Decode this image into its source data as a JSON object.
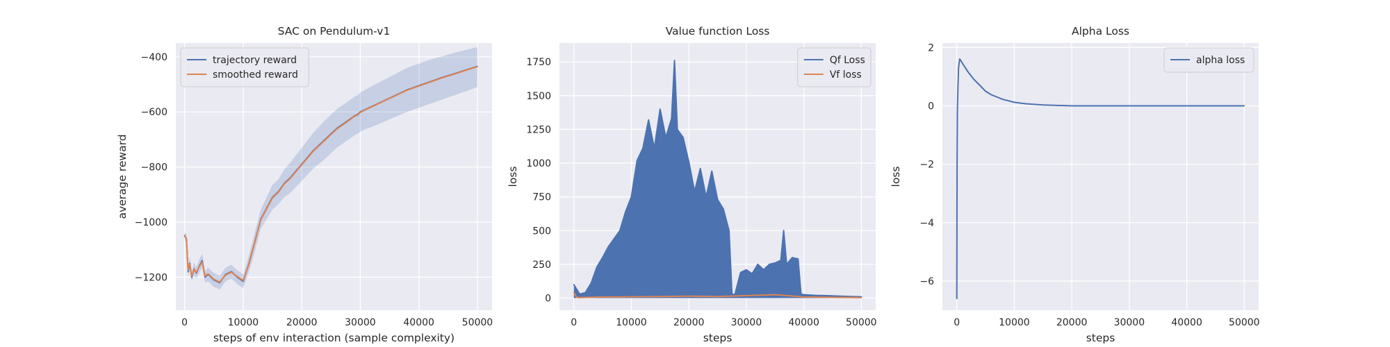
{
  "colors": {
    "blue": "#4c72b0",
    "orange": "#dd8452",
    "band": "#4c72b0"
  },
  "chart_data": [
    {
      "type": "line",
      "title": "SAC on Pendulum-v1",
      "xlabel": "steps of env interaction (sample complexity)",
      "ylabel": "average reward",
      "xlim": [
        -1500,
        52500
      ],
      "ylim": [
        -1320,
        -350
      ],
      "xticks": [
        0,
        10000,
        20000,
        30000,
        40000,
        50000
      ],
      "yticks": [
        -1200,
        -1000,
        -800,
        -600,
        -400
      ],
      "grid": true,
      "legend": "top-left",
      "series": [
        {
          "name": "trajectory reward",
          "x": [
            0,
            300,
            600,
            900,
            1200,
            1600,
            2000,
            2500,
            3000,
            3500,
            4000,
            5000,
            6000,
            7000,
            8000,
            9000,
            10000,
            11000,
            12000,
            13000,
            14000,
            15000,
            16000,
            17000,
            18000,
            20000,
            22000,
            24000,
            26000,
            28000,
            29000,
            29500,
            30000,
            31000,
            32000,
            34000,
            36000,
            38000,
            40000,
            42000,
            44000,
            46000,
            48000,
            50000
          ],
          "y": [
            -1050,
            -1060,
            -1180,
            -1150,
            -1200,
            -1170,
            -1185,
            -1160,
            -1140,
            -1200,
            -1190,
            -1210,
            -1220,
            -1190,
            -1180,
            -1200,
            -1215,
            -1150,
            -1070,
            -990,
            -950,
            -910,
            -890,
            -860,
            -840,
            -790,
            -740,
            -700,
            -660,
            -630,
            -615,
            -610,
            -600,
            -590,
            -580,
            -560,
            -540,
            -520,
            -505,
            -490,
            -475,
            -462,
            -448,
            -435
          ],
          "band_lo": [
            -1060,
            -1080,
            -1200,
            -1175,
            -1215,
            -1195,
            -1205,
            -1185,
            -1165,
            -1220,
            -1215,
            -1235,
            -1245,
            -1215,
            -1205,
            -1225,
            -1240,
            -1180,
            -1105,
            -1025,
            -990,
            -955,
            -935,
            -910,
            -895,
            -850,
            -805,
            -770,
            -730,
            -700,
            -685,
            -680,
            -672,
            -662,
            -654,
            -636,
            -618,
            -600,
            -585,
            -570,
            -555,
            -540,
            -525,
            -510
          ],
          "band_hi": [
            -1040,
            -1040,
            -1160,
            -1125,
            -1185,
            -1145,
            -1165,
            -1135,
            -1115,
            -1180,
            -1165,
            -1185,
            -1195,
            -1165,
            -1155,
            -1175,
            -1190,
            -1120,
            -1035,
            -955,
            -910,
            -865,
            -845,
            -810,
            -785,
            -730,
            -675,
            -630,
            -590,
            -560,
            -545,
            -540,
            -530,
            -518,
            -506,
            -484,
            -462,
            -440,
            -425,
            -410,
            -398,
            -386,
            -375,
            -365
          ]
        },
        {
          "name": "smoothed reward",
          "x": [
            0,
            300,
            600,
            900,
            1200,
            1600,
            2000,
            2500,
            3000,
            3500,
            4000,
            5000,
            6000,
            7000,
            8000,
            9000,
            10000,
            11000,
            12000,
            13000,
            14000,
            15000,
            16000,
            17000,
            18000,
            20000,
            22000,
            24000,
            26000,
            28000,
            29000,
            29500,
            30000,
            31000,
            32000,
            34000,
            36000,
            38000,
            40000,
            42000,
            44000,
            46000,
            48000,
            50000
          ],
          "y": [
            -1048,
            -1062,
            -1175,
            -1152,
            -1196,
            -1172,
            -1182,
            -1162,
            -1145,
            -1196,
            -1188,
            -1208,
            -1218,
            -1192,
            -1182,
            -1198,
            -1212,
            -1152,
            -1072,
            -992,
            -952,
            -912,
            -892,
            -862,
            -842,
            -792,
            -742,
            -702,
            -662,
            -632,
            -616,
            -612,
            -602,
            -591,
            -581,
            -561,
            -541,
            -521,
            -506,
            -491,
            -476,
            -463,
            -449,
            -436
          ]
        }
      ]
    },
    {
      "type": "line",
      "title": "Value function Loss",
      "xlabel": "steps",
      "ylabel": "loss",
      "xlim": [
        -2500,
        52500
      ],
      "ylim": [
        -90,
        1890
      ],
      "xticks": [
        0,
        10000,
        20000,
        30000,
        40000,
        50000
      ],
      "yticks": [
        0,
        250,
        500,
        750,
        1000,
        1250,
        1500,
        1750
      ],
      "grid": true,
      "legend": "top-right",
      "series": [
        {
          "name": "Qf Loss",
          "x": [
            0,
            1000,
            2000,
            3000,
            4000,
            5000,
            6000,
            7000,
            8000,
            9000,
            10000,
            11000,
            12000,
            13000,
            14000,
            15000,
            16000,
            17000,
            17500,
            18000,
            19000,
            20000,
            21000,
            22000,
            23000,
            24000,
            25000,
            26000,
            27000,
            27500,
            28000,
            29000,
            30000,
            31000,
            32000,
            33000,
            34000,
            35000,
            36000,
            36500,
            37000,
            38000,
            39000,
            39500,
            40000,
            42000,
            44000,
            46000,
            48000,
            50000
          ],
          "y": [
            100,
            30,
            40,
            110,
            230,
            300,
            380,
            440,
            500,
            640,
            750,
            1020,
            1110,
            1320,
            1110,
            1400,
            1190,
            1330,
            1760,
            1250,
            1190,
            1010,
            790,
            960,
            750,
            940,
            730,
            660,
            500,
            30,
            25,
            190,
            210,
            180,
            250,
            210,
            250,
            260,
            280,
            500,
            250,
            300,
            290,
            30,
            25,
            20,
            18,
            15,
            12,
            10
          ]
        },
        {
          "name": "Vf loss",
          "x": [
            0,
            500,
            1000,
            5000,
            10000,
            15000,
            20000,
            25000,
            30000,
            35000,
            40000,
            45000,
            50000
          ],
          "y": [
            40,
            5,
            3,
            8,
            10,
            12,
            14,
            12,
            18,
            25,
            8,
            5,
            3
          ]
        }
      ]
    },
    {
      "type": "line",
      "title": "Alpha Loss",
      "xlabel": "steps",
      "ylabel": "loss",
      "xlim": [
        -2500,
        52500
      ],
      "ylim": [
        -7.0,
        2.15
      ],
      "xticks": [
        0,
        10000,
        20000,
        30000,
        40000,
        50000
      ],
      "yticks": [
        -6,
        -4,
        -2,
        0,
        2
      ],
      "grid": true,
      "legend": "top-right",
      "series": [
        {
          "name": "alpha loss",
          "x": [
            0,
            50,
            100,
            200,
            300,
            500,
            700,
            1000,
            1500,
            2000,
            3000,
            4000,
            5000,
            6000,
            8000,
            10000,
            12000,
            15000,
            20000,
            25000,
            30000,
            35000,
            40000,
            45000,
            50000
          ],
          "y": [
            -6.6,
            -2.0,
            -0.2,
            0.6,
            1.3,
            1.6,
            1.55,
            1.45,
            1.3,
            1.15,
            0.9,
            0.7,
            0.5,
            0.38,
            0.22,
            0.12,
            0.07,
            0.03,
            0.0,
            0.0,
            0.0,
            0.0,
            0.0,
            0.0,
            0.0
          ]
        }
      ]
    }
  ]
}
